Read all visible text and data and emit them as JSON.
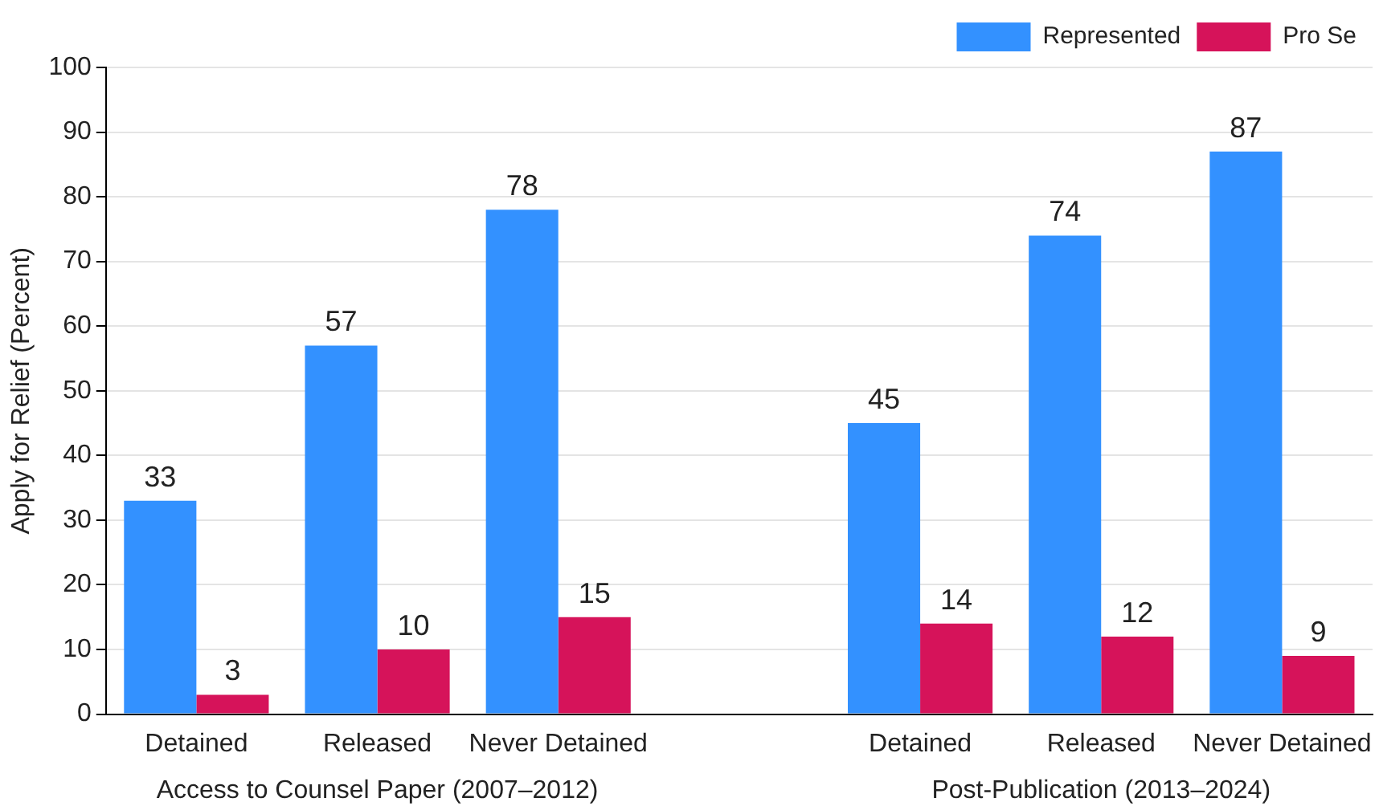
{
  "chart_data": {
    "type": "bar",
    "ylabel": "Apply for Relief (Percent)",
    "categories": [
      "Detained",
      "Released",
      "Never Detained",
      null,
      "Detained",
      "Released",
      "Never Detained"
    ],
    "series": [
      {
        "name": "Represented",
        "color": "#3391ff",
        "values": [
          33,
          57,
          78,
          null,
          45,
          74,
          87
        ]
      },
      {
        "name": "Pro Se",
        "color": "#d6135a",
        "values": [
          3,
          10,
          15,
          null,
          14,
          12,
          9
        ]
      }
    ],
    "ylim": [
      0,
      100
    ],
    "yticks": [
      0,
      10,
      20,
      30,
      40,
      50,
      60,
      70,
      80,
      90,
      100
    ],
    "grid": "y",
    "legend": "top right",
    "data_labels": true,
    "annotations": [
      "Access to Counsel Paper (2007–2012)",
      "Post-Publication (2013–2024)"
    ]
  }
}
